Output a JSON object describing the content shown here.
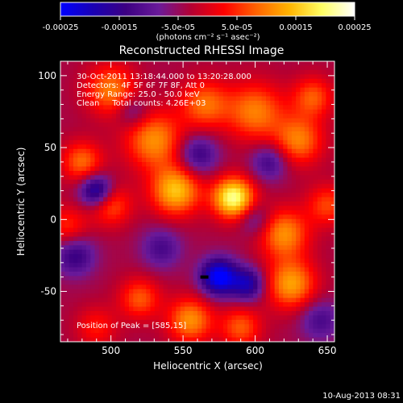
{
  "chart_data": {
    "type": "heatmap",
    "title": "Reconstructed RHESSI Image",
    "xlabel": "Heliocentric X (arcsec)",
    "ylabel": "Heliocentric Y (arcsec)",
    "xlim": [
      465,
      655
    ],
    "ylim": [
      -85,
      110
    ],
    "x_ticks": [
      500,
      550,
      600,
      650
    ],
    "y_ticks": [
      -50,
      0,
      50,
      100
    ],
    "colorbar": {
      "range": [
        -0.00025,
        0.00025
      ],
      "ticks": [
        "-0.00025",
        "-0.00015",
        "-5.0e-05",
        "5.0e-05",
        "0.00015",
        "0.00025"
      ],
      "unit_label": "(photons cm⁻² s⁻¹ asec⁻²)",
      "colormap": [
        "#0000ff",
        "#1a00b4",
        "#3c0082",
        "#6a1a9a",
        "#b40032",
        "#ff0000",
        "#ff6400",
        "#ffb400",
        "#ffff64",
        "#ffffff"
      ]
    },
    "annotations": {
      "time": "30-Oct-2011 13:18:44.000 to 13:20:28.000",
      "detectors": "Detectors: 4F 5F 6F 7F 8F, Att 0",
      "energy": "Energy Range: 25.0 - 50.0 keV",
      "clean": "Clean     Total counts: 4.26E+03",
      "peak": "Position of Peak = [585,15]"
    },
    "peak": [
      585,
      15
    ],
    "timestamp": "10-Aug-2013 08:31",
    "blobs": [
      {
        "x": 585,
        "y": 15,
        "amp": 1.0,
        "r": 10
      },
      {
        "x": 545,
        "y": 20,
        "amp": 0.75,
        "r": 12
      },
      {
        "x": 530,
        "y": 55,
        "amp": 0.6,
        "r": 14
      },
      {
        "x": 600,
        "y": 75,
        "amp": 0.55,
        "r": 14
      },
      {
        "x": 565,
        "y": 80,
        "amp": 0.5,
        "r": 12
      },
      {
        "x": 630,
        "y": 55,
        "amp": 0.55,
        "r": 12
      },
      {
        "x": 640,
        "y": 85,
        "amp": 0.45,
        "r": 10
      },
      {
        "x": 620,
        "y": -10,
        "amp": 0.6,
        "r": 12
      },
      {
        "x": 625,
        "y": -45,
        "amp": 0.65,
        "r": 12
      },
      {
        "x": 555,
        "y": -70,
        "amp": 0.6,
        "r": 11
      },
      {
        "x": 500,
        "y": 90,
        "amp": 0.55,
        "r": 12
      },
      {
        "x": 480,
        "y": 40,
        "amp": 0.5,
        "r": 10
      },
      {
        "x": 500,
        "y": 10,
        "amp": 0.45,
        "r": 10
      },
      {
        "x": 520,
        "y": -55,
        "amp": 0.45,
        "r": 10
      },
      {
        "x": 590,
        "y": -75,
        "amp": 0.45,
        "r": 10
      },
      {
        "x": 470,
        "y": -5,
        "amp": 0.35,
        "r": 10
      },
      {
        "x": 490,
        "y": -75,
        "amp": 0.3,
        "r": 10
      },
      {
        "x": 650,
        "y": 10,
        "amp": 0.4,
        "r": 10
      },
      {
        "x": 575,
        "y": -40,
        "amp": -0.9,
        "r": 9
      },
      {
        "x": 595,
        "y": -45,
        "amp": -0.6,
        "r": 8
      },
      {
        "x": 490,
        "y": 20,
        "amp": -0.7,
        "r": 8
      },
      {
        "x": 475,
        "y": -25,
        "amp": -0.45,
        "r": 10
      },
      {
        "x": 560,
        "y": 45,
        "amp": -0.45,
        "r": 10
      },
      {
        "x": 610,
        "y": 40,
        "amp": -0.4,
        "r": 9
      },
      {
        "x": 535,
        "y": -20,
        "amp": -0.35,
        "r": 10
      },
      {
        "x": 600,
        "y": 0,
        "amp": -0.3,
        "r": 8
      },
      {
        "x": 645,
        "y": -70,
        "amp": -0.35,
        "r": 10
      },
      {
        "x": 515,
        "y": 75,
        "amp": -0.3,
        "r": 8
      }
    ]
  }
}
